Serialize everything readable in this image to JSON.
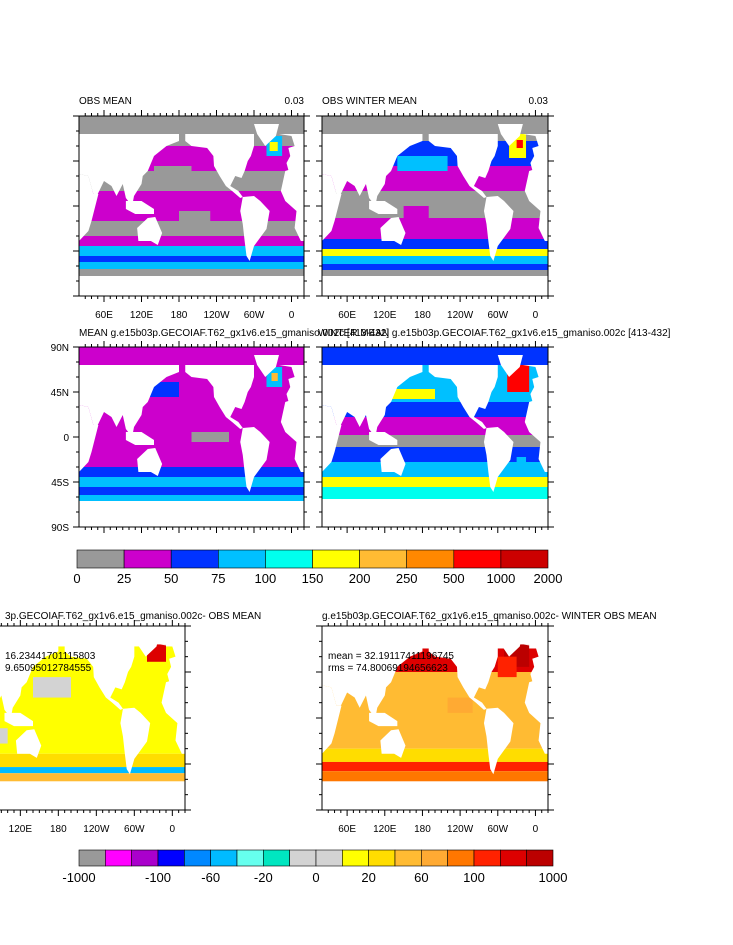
{
  "panels": [
    {
      "title": "OBS MEAN",
      "right_label": "0.03",
      "x_labels": [
        "60E",
        "120E",
        "180",
        "120W",
        "60W",
        "0"
      ]
    },
    {
      "title": "OBS WINTER MEAN",
      "right_label": "0.03",
      "x_labels": [
        "60E",
        "120E",
        "180",
        "120W",
        "60W",
        "0"
      ]
    },
    {
      "title": "MEAN g.e15b03p.GECOIAF.T62_gx1v6.e15_gmaniso.002c [413-432]",
      "y_labels": [
        "90N",
        "45N",
        "0",
        "45S",
        "90S"
      ]
    },
    {
      "title": "WINTER MEAN g.e15b03p.GECOIAF.T62_gx1v6.e15_gmaniso.002c [413-432]"
    },
    {
      "title": "3p.GECOIAF.T62_gx1v6.e15_gmaniso.002c- OBS MEAN",
      "stats": [
        "16.23441701115803",
        "9.65095012784555"
      ],
      "x_labels": [
        "120E",
        "180",
        "120W",
        "60W",
        "0"
      ]
    },
    {
      "title": "g.e15b03p.GECOIAF.T62_gx1v6.e15_gmaniso.002c- WINTER OBS MEAN",
      "stats": [
        "mean = 32.19117411196745",
        "rms = 74.80069194656623"
      ],
      "x_labels": [
        "60E",
        "120E",
        "180",
        "120W",
        "60W",
        "0"
      ]
    }
  ],
  "colorbars": [
    {
      "colors": [
        "#999999",
        "#cc00cc",
        "#0033ff",
        "#00c0ff",
        "#00ffee",
        "#ffff00",
        "#ffbb33",
        "#ff8800",
        "#ff0000",
        "#cc0000"
      ],
      "labels": [
        "0",
        "25",
        "50",
        "75",
        "100",
        "150",
        "200",
        "250",
        "500",
        "1000",
        "2000"
      ]
    },
    {
      "colors": [
        "#999999",
        "#ff00ff",
        "#aa00cc",
        "#0000ff",
        "#0088ff",
        "#00bbff",
        "#66ffee",
        "#00e6c0",
        "#d3d3d3",
        "#d3d3d3",
        "#ffff00",
        "#ffdd00",
        "#ffbb33",
        "#ffaa33",
        "#ff7700",
        "#ff2200",
        "#dd0000",
        "#bb0000"
      ],
      "labels": [
        "-1000",
        "-100",
        "-60",
        "-20",
        "0",
        "20",
        "60",
        "100",
        "1000"
      ]
    }
  ]
}
